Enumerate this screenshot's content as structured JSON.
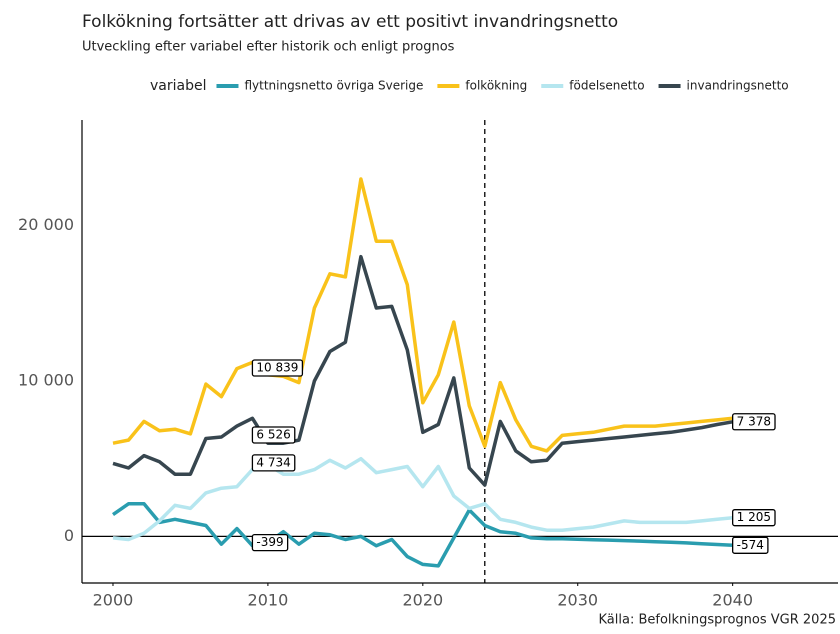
{
  "chart_data": {
    "type": "line",
    "title": "Folkökning fortsätter att drivas av ett positivt invandringsnetto",
    "subtitle": "Utveckling efter variabel efter historik och enligt prognos",
    "legend_title": "variabel",
    "caption": "Källa: Befolkningsprognos VGR 2025",
    "x": [
      2000,
      2001,
      2002,
      2003,
      2004,
      2005,
      2006,
      2007,
      2008,
      2009,
      2010,
      2011,
      2012,
      2013,
      2014,
      2015,
      2016,
      2017,
      2018,
      2019,
      2020,
      2021,
      2022,
      2023,
      2024,
      2025,
      2026,
      2027,
      2028,
      2029,
      2030,
      2031,
      2032,
      2033,
      2034,
      2035,
      2036,
      2037,
      2038,
      2039,
      2040
    ],
    "series": [
      {
        "name": "flyttningsnetto övriga Sverige",
        "color": "#2a9daf",
        "values": [
          1400,
          2100,
          2100,
          900,
          1100,
          900,
          700,
          -500,
          500,
          -600,
          -400,
          300,
          -500,
          200,
          100,
          -200,
          0,
          -600,
          -200,
          -1300,
          -1800,
          -1900,
          -100,
          1700,
          700,
          300,
          200,
          -100,
          -150,
          -150,
          -180,
          -210,
          -240,
          -270,
          -300,
          -340,
          -380,
          -420,
          -470,
          -520,
          -574
        ]
      },
      {
        "name": "folkökning",
        "color": "#f9c21a",
        "values": [
          6000,
          6200,
          7400,
          6800,
          6900,
          6600,
          9800,
          9000,
          10800,
          11200,
          10400,
          10300,
          9900,
          14700,
          16900,
          16700,
          23000,
          19000,
          19000,
          16200,
          8600,
          10400,
          13800,
          8400,
          5800,
          9900,
          7500,
          5800,
          5500,
          6500,
          6600,
          6700,
          6900,
          7100,
          7100,
          7100,
          7200,
          7300,
          7400,
          7500,
          7600
        ]
      },
      {
        "name": "födelsenetto",
        "color": "#b5e6ef",
        "values": [
          -100,
          -200,
          200,
          1000,
          2000,
          1800,
          2800,
          3100,
          3200,
          4300,
          4600,
          4000,
          4000,
          4300,
          4900,
          4400,
          5000,
          4100,
          4300,
          4500,
          3200,
          4500,
          2600,
          1800,
          2100,
          1100,
          900,
          600,
          400,
          400,
          500,
          600,
          800,
          1000,
          900,
          900,
          900,
          900,
          1000,
          1100,
          1205
        ]
      },
      {
        "name": "invandringsnetto",
        "color": "#37464f",
        "values": [
          4700,
          4400,
          5200,
          4800,
          4000,
          4000,
          6300,
          6400,
          7100,
          7600,
          6000,
          6000,
          6200,
          10000,
          11900,
          12500,
          18000,
          14700,
          14800,
          12000,
          6700,
          7200,
          10200,
          4400,
          3300,
          7400,
          5500,
          4800,
          4900,
          6000,
          6100,
          6200,
          6300,
          6400,
          6500,
          6600,
          6700,
          6850,
          7000,
          7200,
          7378
        ]
      }
    ],
    "annotations": [
      {
        "x": 2009,
        "y": 10839,
        "label": "10 839"
      },
      {
        "x": 2009,
        "y": 6526,
        "label": "6 526"
      },
      {
        "x": 2009,
        "y": 4734,
        "label": "4 734"
      },
      {
        "x": 2009,
        "y": -399,
        "label": "-399"
      },
      {
        "x": 2040,
        "y": 7378,
        "label": "7 378"
      },
      {
        "x": 2040,
        "y": 1205,
        "label": "1 205"
      },
      {
        "x": 2040,
        "y": -574,
        "label": "-574"
      }
    ],
    "vline": 2024,
    "xlim": [
      1998,
      2046.8
    ],
    "ylim": [
      -3000,
      26800
    ],
    "xticks": [
      2000,
      2010,
      2020,
      2030,
      2040
    ],
    "yticks": [
      0,
      {
        "value": 10000,
        "label": "10 000"
      },
      {
        "value": 20000,
        "label": "20 000"
      }
    ]
  }
}
